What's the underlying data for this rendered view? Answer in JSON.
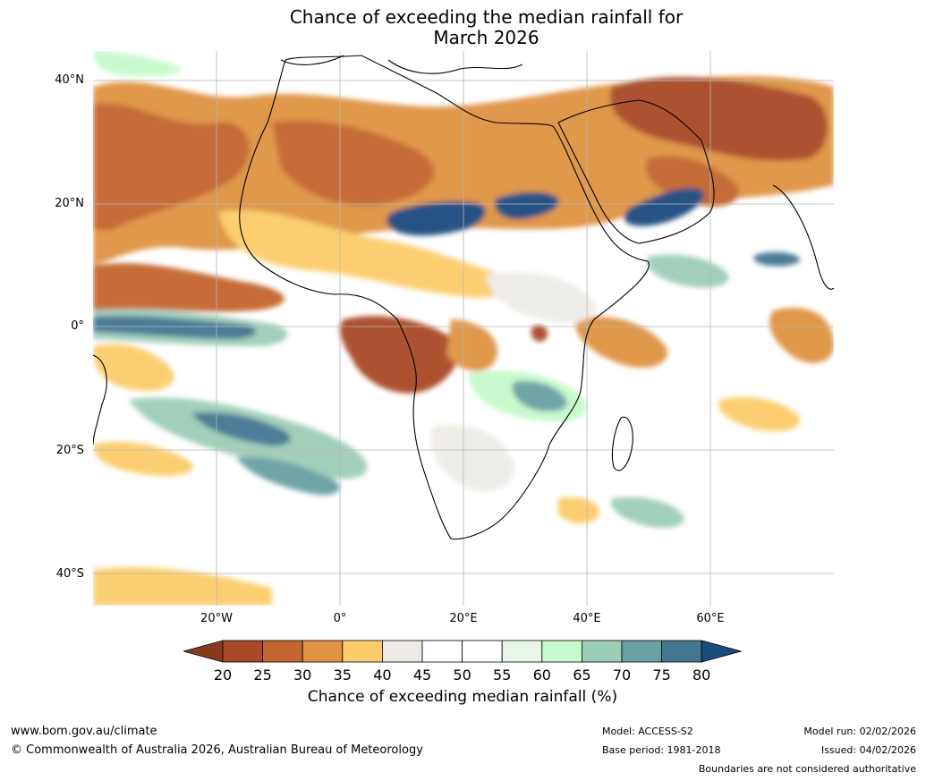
{
  "map": {
    "title_line1": "Chance of exceeding the median rainfall for",
    "title_line2": "March 2026",
    "lat_labels": [
      "40°N",
      "20°N",
      "0°",
      "20°S",
      "40°S"
    ],
    "lon_labels": [
      "20°W",
      "0°",
      "20°E",
      "40°E",
      "60°E"
    ]
  },
  "legend": {
    "ticks": [
      "20",
      "25",
      "30",
      "35",
      "40",
      "45",
      "50",
      "55",
      "60",
      "65",
      "70",
      "75",
      "80"
    ],
    "label": "Chance of exceeding median rainfall (%)",
    "colors": [
      "#8a3a1c",
      "#a84a26",
      "#c3652f",
      "#df9343",
      "#fbcc6b",
      "#eeebe6",
      "#ffffff",
      "#ffffff",
      "#e8f6e9",
      "#c6f9cb",
      "#9ccdb7",
      "#6aa0a3",
      "#457792",
      "#1a4c7e"
    ]
  },
  "footer": {
    "website": "www.bom.gov.au/climate",
    "copyright": "© Commonwealth of Australia 2026, Australian Bureau of Meteorology",
    "model": "Model: ACCESS-S2",
    "base_period": "Base period: 1981-2018",
    "model_run": "Model run: 02/02/2026",
    "issued": "Issued: 04/02/2026",
    "disclaimer": "Boundaries are not considered authoritative"
  }
}
